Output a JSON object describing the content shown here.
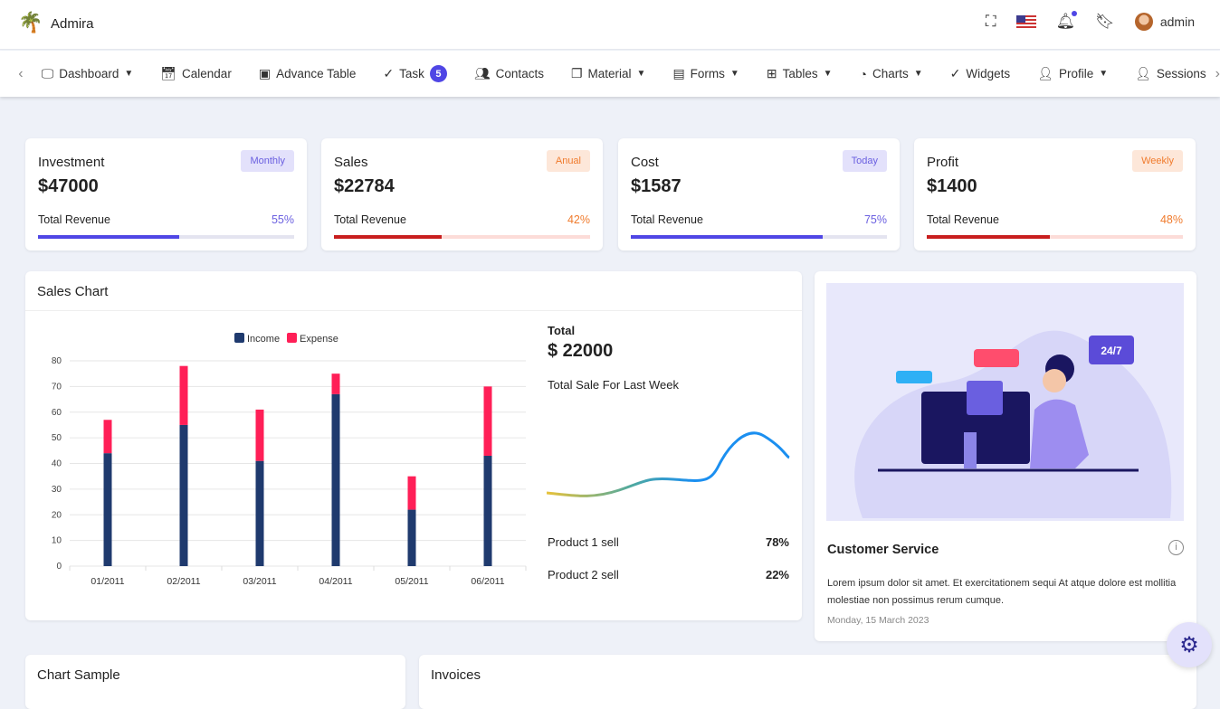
{
  "app": {
    "name": "Admira",
    "user": "admin"
  },
  "nav": [
    {
      "label": "Dashboard",
      "icon": "monitor-icon",
      "dropdown": true
    },
    {
      "label": "Calendar",
      "icon": "calendar-icon"
    },
    {
      "label": "Advance Table",
      "icon": "table-icon"
    },
    {
      "label": "Task",
      "icon": "check-circle-icon",
      "badge": "5"
    },
    {
      "label": "Contacts",
      "icon": "users-icon"
    },
    {
      "label": "Material",
      "icon": "copy-icon",
      "dropdown": true
    },
    {
      "label": "Forms",
      "icon": "form-icon",
      "dropdown": true
    },
    {
      "label": "Tables",
      "icon": "grid-icon",
      "dropdown": true
    },
    {
      "label": "Charts",
      "icon": "pie-icon",
      "dropdown": true
    },
    {
      "label": "Widgets",
      "icon": "check-circle-icon"
    },
    {
      "label": "Profile",
      "icon": "user-icon",
      "dropdown": true
    },
    {
      "label": "Sessions",
      "icon": "user-check-icon"
    }
  ],
  "stats": [
    {
      "title": "Investment",
      "value": "$47000",
      "badge": "Monthly",
      "label": "Total Revenue",
      "percent": "55%",
      "progress": 55,
      "color": "#4f46e5",
      "track": "#e4e4f0",
      "badgeBg": "#e3e1fb",
      "badgeColor": "#6a5fe0"
    },
    {
      "title": "Sales",
      "value": "$22784",
      "badge": "Anual",
      "label": "Total Revenue",
      "percent": "42%",
      "progress": 42,
      "color": "#c81e1e",
      "track": "#fcdcd8",
      "badgeBg": "#fde7d9",
      "badgeColor": "#f07b2d"
    },
    {
      "title": "Cost",
      "value": "$1587",
      "badge": "Today",
      "label": "Total Revenue",
      "percent": "75%",
      "progress": 75,
      "color": "#4f46e5",
      "track": "#e4e4f0",
      "badgeBg": "#e3e1fb",
      "badgeColor": "#6a5fe0"
    },
    {
      "title": "Profit",
      "value": "$1400",
      "badge": "Weekly",
      "label": "Total Revenue",
      "percent": "48%",
      "progress": 48,
      "color": "#c81e1e",
      "track": "#fcdcd8",
      "badgeBg": "#fde7d9",
      "badgeColor": "#f07b2d"
    }
  ],
  "sales_chart": {
    "title": "Sales Chart",
    "total_label": "Total",
    "total_value": "$ 22000",
    "subtitle": "Total Sale For Last Week",
    "products": [
      {
        "label": "Product 1 sell",
        "value": "78%"
      },
      {
        "label": "Product 2 sell",
        "value": "22%"
      }
    ]
  },
  "chart_data": {
    "type": "bar",
    "stacked": true,
    "categories": [
      "01/2011",
      "02/2011",
      "03/2011",
      "04/2011",
      "05/2011",
      "06/2011"
    ],
    "series": [
      {
        "name": "Income",
        "color": "#1f3a6e",
        "values": [
          44,
          55,
          41,
          67,
          22,
          43
        ]
      },
      {
        "name": "Expense",
        "color": "#ff1f57",
        "values": [
          13,
          23,
          20,
          8,
          13,
          27
        ]
      }
    ],
    "ylim": [
      0,
      80
    ],
    "yticks": [
      0,
      10,
      20,
      30,
      40,
      50,
      60,
      70,
      80
    ],
    "legend": "top-center",
    "grid": true
  },
  "customer": {
    "title": "Customer Service",
    "text": "Lorem ipsum dolor sit amet. Et exercitationem sequi At atque dolore est mollitia molestiae non possimus rerum cumque.",
    "date": "Monday, 15 March 2023",
    "badge": "24/7"
  },
  "bottom": {
    "chart_sample": "Chart Sample",
    "invoices": "Invoices"
  }
}
